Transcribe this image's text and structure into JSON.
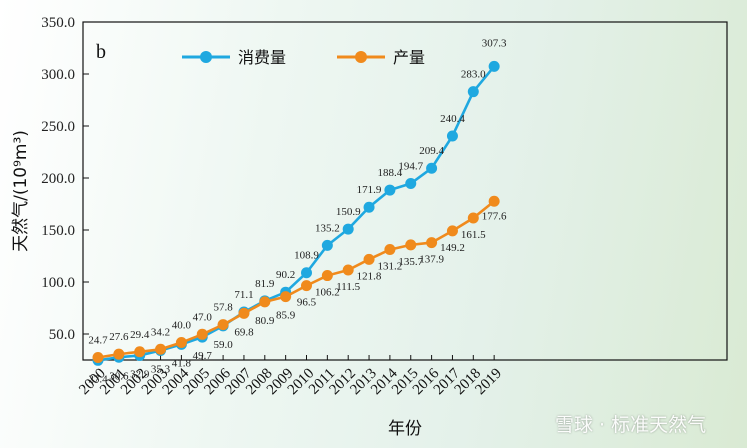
{
  "chart_data": {
    "type": "line",
    "panel_label": "b",
    "xlabel": "年份",
    "ylabel": "天然气/(10⁹m³)",
    "ylim": [
      25,
      350
    ],
    "yticks": [
      "50.0",
      "100.0",
      "150.0",
      "200.0",
      "250.0",
      "300.0",
      "350.0"
    ],
    "x": [
      "2000",
      "2001",
      "2002",
      "2003",
      "2004",
      "2005",
      "2006",
      "2007",
      "2008",
      "2009",
      "2010",
      "2011",
      "2012",
      "2013",
      "2014",
      "2015",
      "2016",
      "2017",
      "2018",
      "2019"
    ],
    "series": [
      {
        "name": "消费量",
        "color": "#1fa8e0",
        "values": [
          24.7,
          27.6,
          29.4,
          34.2,
          40.0,
          47.0,
          57.8,
          71.1,
          81.9,
          90.2,
          108.9,
          135.2,
          150.9,
          171.9,
          188.4,
          194.7,
          209.4,
          240.4,
          283.0,
          307.3
        ],
        "labels": [
          "24.7",
          "27.6",
          "29.4",
          "34.2",
          "40.0",
          "47.0",
          "57.8",
          "71.1",
          "81.9",
          "90.2",
          "108.9",
          "135.2",
          "150.9",
          "171.9",
          "188.4",
          "194.7",
          "209.4",
          "240.4",
          "283.0",
          "307.3"
        ]
      },
      {
        "name": "产量",
        "color": "#f08a1c",
        "values": [
          27.4,
          30.6,
          32.9,
          35.3,
          41.8,
          49.7,
          59.0,
          69.8,
          80.9,
          85.9,
          96.5,
          106.2,
          111.5,
          121.8,
          131.2,
          135.7,
          137.9,
          149.2,
          161.5,
          177.6
        ],
        "labels": [
          "27.4",
          "30.6",
          "32.9",
          "35.3",
          "41.8",
          "49.7",
          "59.0",
          "69.8",
          "80.9",
          "85.9",
          "96.5",
          "106.2",
          "111.5",
          "121.8",
          "131.2",
          "135.7",
          "137.9",
          "149.2",
          "161.5",
          "177.6"
        ]
      }
    ],
    "legend_position": "top-left"
  },
  "watermark": "雪球 · 标准天然气"
}
